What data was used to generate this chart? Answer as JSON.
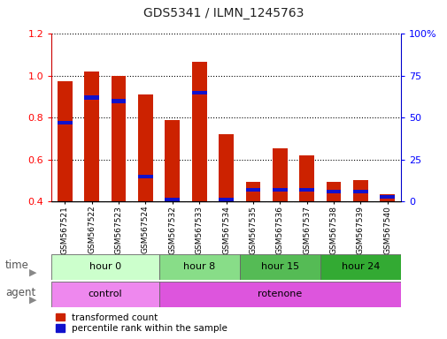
{
  "title": "GDS5341 / ILMN_1245763",
  "samples": [
    "GSM567521",
    "GSM567522",
    "GSM567523",
    "GSM567524",
    "GSM567532",
    "GSM567533",
    "GSM567534",
    "GSM567535",
    "GSM567536",
    "GSM567537",
    "GSM567538",
    "GSM567539",
    "GSM567540"
  ],
  "transformed_count": [
    0.975,
    1.02,
    1.0,
    0.91,
    0.79,
    1.065,
    0.72,
    0.495,
    0.655,
    0.62,
    0.495,
    0.505,
    0.435
  ],
  "percentile_rank_pct": [
    47,
    62,
    60,
    15,
    1,
    65,
    1,
    7,
    7,
    7,
    6,
    6,
    3
  ],
  "ylim_left": [
    0.4,
    1.2
  ],
  "ylim_right": [
    0,
    100
  ],
  "yticks_left": [
    0.4,
    0.6,
    0.8,
    1.0,
    1.2
  ],
  "yticks_right": [
    0,
    25,
    50,
    75,
    100
  ],
  "bar_color_red": "#cc2200",
  "bar_color_blue": "#1111cc",
  "bar_width": 0.55,
  "time_groups": [
    {
      "label": "hour 0",
      "start": 0,
      "end": 4,
      "color": "#ccffcc"
    },
    {
      "label": "hour 8",
      "start": 4,
      "end": 7,
      "color": "#88dd88"
    },
    {
      "label": "hour 15",
      "start": 7,
      "end": 10,
      "color": "#55bb55"
    },
    {
      "label": "hour 24",
      "start": 10,
      "end": 13,
      "color": "#33aa33"
    }
  ],
  "agent_groups": [
    {
      "label": "control",
      "start": 0,
      "end": 4,
      "color": "#ee88ee"
    },
    {
      "label": "rotenone",
      "start": 4,
      "end": 13,
      "color": "#dd55dd"
    }
  ],
  "legend_red_label": "transformed count",
  "legend_blue_label": "percentile rank within the sample",
  "time_label": "time",
  "agent_label": "agent"
}
